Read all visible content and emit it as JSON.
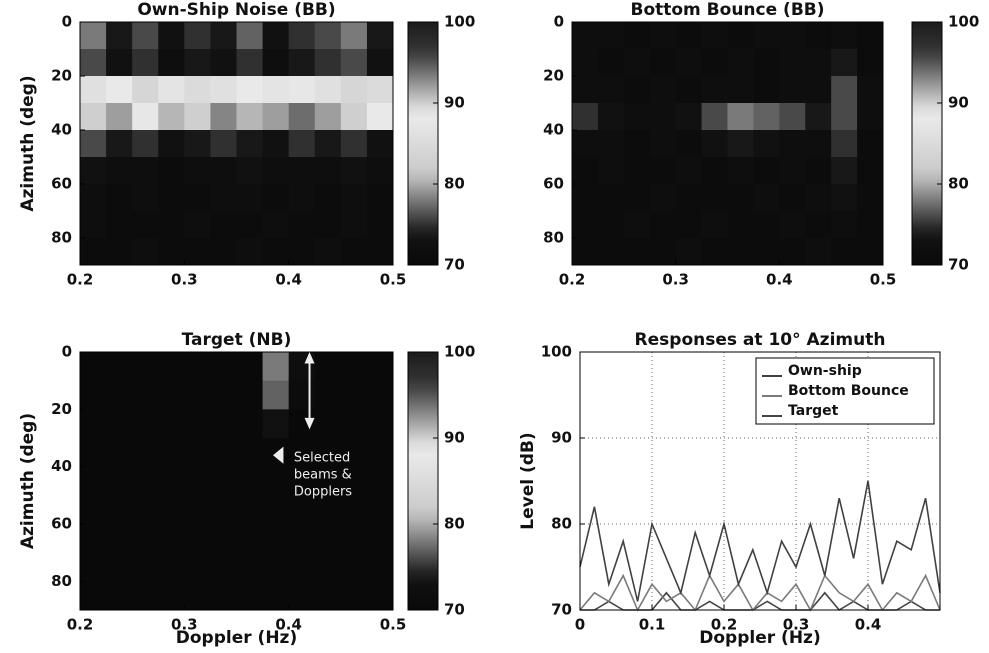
{
  "chart_data": [
    {
      "type": "heatmap",
      "title": "Own-Ship Noise (BB)",
      "ylabel": "Azimuth (deg)",
      "colormap": "jet",
      "y_inverted": true,
      "xbins": [
        0.2,
        0.225,
        0.25,
        0.275,
        0.3,
        0.325,
        0.35,
        0.375,
        0.4,
        0.425,
        0.45,
        0.475,
        0.5
      ],
      "ybins": [
        0,
        10,
        20,
        30,
        40,
        50,
        60,
        70,
        80,
        90
      ],
      "z": [
        [
          78,
          74,
          76,
          73,
          75,
          74,
          77,
          73,
          75,
          76,
          78,
          74
        ],
        [
          76,
          73,
          75,
          72,
          74,
          73,
          75,
          72,
          74,
          75,
          76,
          73
        ],
        [
          86,
          88,
          84,
          87,
          85,
          86,
          88,
          87,
          89,
          86,
          84,
          85
        ],
        [
          90,
          92,
          89,
          91,
          90,
          93,
          91,
          92,
          94,
          92,
          90,
          88
        ],
        [
          76,
          74,
          75,
          73,
          74,
          75,
          74,
          73,
          75,
          74,
          75,
          73
        ],
        [
          73,
          72,
          72,
          71,
          72,
          72,
          73,
          72,
          72,
          72,
          73,
          72
        ],
        [
          72,
          71,
          72,
          71,
          71,
          72,
          72,
          71,
          72,
          71,
          72,
          71
        ],
        [
          72,
          71,
          71,
          71,
          72,
          71,
          71,
          72,
          71,
          71,
          72,
          71
        ],
        [
          71,
          71,
          72,
          71,
          71,
          71,
          72,
          71,
          71,
          72,
          71,
          71
        ]
      ],
      "xlim": [
        0.2,
        0.5
      ],
      "ylim": [
        0,
        90
      ],
      "xticks": [
        0.2,
        0.3,
        0.4,
        0.5
      ],
      "yticks": [
        0,
        20,
        40,
        60,
        80
      ],
      "clim": [
        70,
        100
      ],
      "cticks": [
        70,
        80,
        90,
        100
      ]
    },
    {
      "type": "heatmap",
      "title": "Bottom Bounce (BB)",
      "colormap": "jet",
      "y_inverted": true,
      "xbins": [
        0.2,
        0.225,
        0.25,
        0.275,
        0.3,
        0.325,
        0.35,
        0.375,
        0.4,
        0.425,
        0.45,
        0.475,
        0.5
      ],
      "ybins": [
        0,
        10,
        20,
        30,
        40,
        50,
        60,
        70,
        80,
        90
      ],
      "z": [
        [
          72,
          72,
          71,
          72,
          71,
          72,
          71,
          72,
          72,
          71,
          72,
          71
        ],
        [
          72,
          71,
          72,
          71,
          72,
          71,
          72,
          71,
          72,
          72,
          74,
          71
        ],
        [
          72,
          72,
          71,
          72,
          71,
          72,
          72,
          71,
          72,
          72,
          76,
          72
        ],
        [
          75,
          73,
          72,
          72,
          73,
          76,
          78,
          77,
          76,
          74,
          76,
          72
        ],
        [
          72,
          72,
          71,
          72,
          71,
          73,
          74,
          73,
          72,
          72,
          75,
          71
        ],
        [
          71,
          72,
          71,
          71,
          72,
          71,
          72,
          71,
          72,
          71,
          74,
          71
        ],
        [
          71,
          71,
          71,
          72,
          71,
          71,
          71,
          72,
          71,
          72,
          73,
          71
        ],
        [
          71,
          71,
          72,
          71,
          71,
          72,
          71,
          71,
          72,
          71,
          72,
          71
        ],
        [
          71,
          71,
          71,
          71,
          72,
          71,
          71,
          71,
          71,
          72,
          71,
          71
        ]
      ],
      "xlim": [
        0.2,
        0.5
      ],
      "ylim": [
        0,
        90
      ],
      "xticks": [
        0.2,
        0.3,
        0.4,
        0.5
      ],
      "yticks": [
        0,
        20,
        40,
        60,
        80
      ],
      "clim": [
        70,
        100
      ],
      "cticks": [
        70,
        80,
        90,
        100
      ]
    },
    {
      "type": "heatmap",
      "title": "Target (NB)",
      "ylabel": "Azimuth (deg)",
      "xlabel": "Doppler (Hz)",
      "colormap": "jet",
      "y_inverted": true,
      "xbins": [
        0.2,
        0.225,
        0.25,
        0.275,
        0.3,
        0.325,
        0.35,
        0.375,
        0.4,
        0.425,
        0.45,
        0.475,
        0.5
      ],
      "ybins": [
        0,
        10,
        20,
        30,
        40,
        50,
        60,
        70,
        80,
        90
      ],
      "z": [
        [
          70,
          70,
          70,
          70,
          70,
          70,
          70,
          78,
          72,
          70,
          70,
          70
        ],
        [
          70,
          70,
          70,
          70,
          70,
          70,
          70,
          77,
          71,
          70,
          70,
          70
        ],
        [
          70,
          70,
          70,
          70,
          70,
          70,
          70,
          73,
          70,
          70,
          70,
          70
        ],
        [
          70,
          70,
          70,
          70,
          70,
          70,
          70,
          70,
          70,
          70,
          70,
          70
        ],
        [
          70,
          70,
          70,
          70,
          70,
          70,
          70,
          70,
          70,
          70,
          70,
          70
        ],
        [
          70,
          70,
          70,
          70,
          70,
          70,
          70,
          70,
          70,
          70,
          70,
          70
        ],
        [
          70,
          70,
          70,
          70,
          70,
          70,
          70,
          70,
          70,
          70,
          70,
          70
        ],
        [
          70,
          70,
          70,
          70,
          70,
          70,
          70,
          70,
          70,
          70,
          70,
          70
        ],
        [
          70,
          70,
          70,
          70,
          70,
          70,
          70,
          70,
          70,
          70,
          70,
          70
        ]
      ],
      "xlim": [
        0.2,
        0.5
      ],
      "ylim": [
        0,
        90
      ],
      "xticks": [
        0.2,
        0.3,
        0.4,
        0.5
      ],
      "yticks": [
        0,
        20,
        40,
        60,
        80
      ],
      "clim": [
        70,
        100
      ],
      "cticks": [
        70,
        80,
        90,
        100
      ],
      "annotation": [
        "Selected",
        "beams &",
        "Dopplers"
      ]
    },
    {
      "type": "line",
      "title": "Responses at 10° Azimuth",
      "xlabel": "Doppler (Hz)",
      "ylabel": "Level (dB)",
      "x": [
        0,
        0.02,
        0.04,
        0.06,
        0.08,
        0.1,
        0.12,
        0.14,
        0.16,
        0.18,
        0.2,
        0.22,
        0.24,
        0.26,
        0.28,
        0.3,
        0.32,
        0.34,
        0.36,
        0.38,
        0.4,
        0.42,
        0.44,
        0.46,
        0.48,
        0.5
      ],
      "series": [
        {
          "name": "Own-ship",
          "color": "#1f3fbf",
          "values": [
            75,
            82,
            73,
            78,
            71,
            80,
            76,
            72,
            79,
            74,
            80,
            73,
            77,
            72,
            78,
            75,
            80,
            74,
            83,
            76,
            85,
            73,
            78,
            77,
            83,
            72
          ]
        },
        {
          "name": "Bottom Bounce",
          "color": "#2a9a2a",
          "values": [
            70,
            72,
            71,
            74,
            70,
            73,
            71,
            72,
            70,
            74,
            71,
            73,
            70,
            72,
            71,
            73,
            70,
            74,
            72,
            71,
            73,
            70,
            72,
            71,
            74,
            70
          ]
        },
        {
          "name": "Target",
          "color": "#d02020",
          "values": [
            70,
            70,
            71,
            70,
            70,
            70,
            72,
            70,
            70,
            71,
            70,
            70,
            70,
            71,
            70,
            70,
            70,
            72,
            70,
            71,
            70,
            70,
            70,
            71,
            70,
            70
          ]
        }
      ],
      "xlim": [
        0,
        0.5
      ],
      "ylim": [
        70,
        100
      ],
      "xticks": [
        0,
        0.1,
        0.2,
        0.3,
        0.4
      ],
      "yticks": [
        70,
        80,
        90,
        100
      ],
      "grid": true,
      "legend": "upper right"
    }
  ]
}
